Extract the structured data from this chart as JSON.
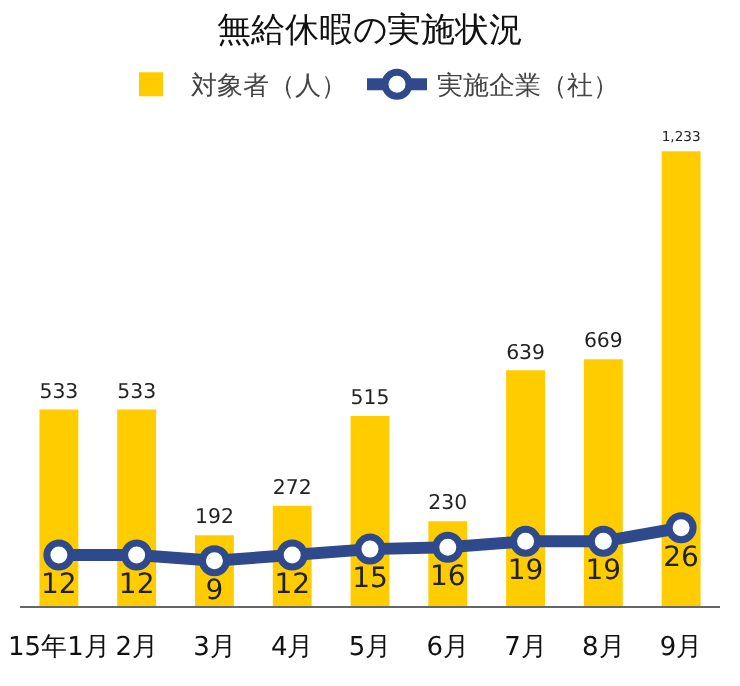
{
  "chart_data": {
    "type": "bar",
    "title": "無給休暇の実施状況",
    "categories": [
      "15年1月",
      "2月",
      "3月",
      "4月",
      "5月",
      "6月",
      "7月",
      "8月",
      "9月"
    ],
    "series": [
      {
        "name": "対象者（人）",
        "color": "#ffcc00",
        "values": [
          533,
          533,
          192,
          272,
          515,
          230,
          639,
          669,
          1233
        ],
        "value_labels": [
          "533",
          "533",
          "192",
          "272",
          "515",
          "230",
          "639",
          "669",
          "1,233"
        ]
      },
      {
        "name": "実施企業（社）",
        "type": "line",
        "axis": "y2",
        "color": "#2e4a8c",
        "values": [
          12,
          12,
          9,
          12,
          15,
          16,
          19,
          19,
          26
        ]
      }
    ],
    "tick_labels": "x",
    "data_labels": true,
    "legend": "top",
    "marker": "circle",
    "line_style": "solid"
  }
}
